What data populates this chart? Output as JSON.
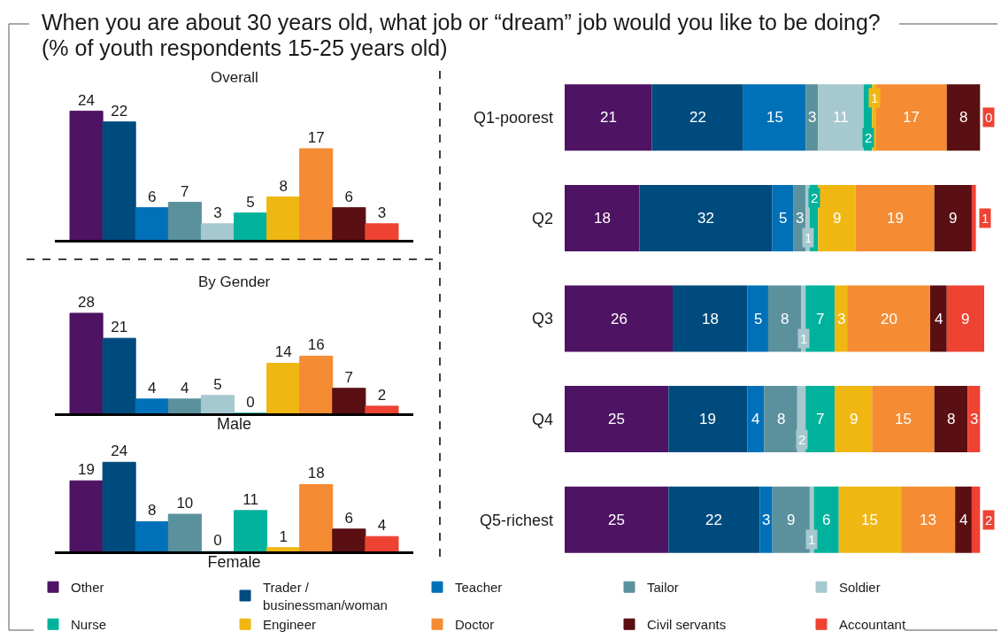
{
  "chart_data": [
    {
      "type": "other",
      "title": "When you are about 30 years old, what job or “dream” job would you like to be doing?",
      "subtitle": "(% of youth respondents 15-25 years old)"
    },
    {
      "type": "bar",
      "title": "Overall",
      "categories": [
        null
      ],
      "series": [
        {
          "name": "Other",
          "color": "#4e1363",
          "values": [
            24
          ]
        },
        {
          "name": "Trader / businessman/woman",
          "color": "#004b7e",
          "values": [
            22
          ]
        },
        {
          "name": "Teacher",
          "color": "#0070b8",
          "values": [
            6
          ]
        },
        {
          "name": "Tailor",
          "color": "#5b919d",
          "values": [
            7
          ]
        },
        {
          "name": "Soldier",
          "color": "#a6c8cf",
          "values": [
            3
          ]
        },
        {
          "name": "Nurse",
          "color": "#00b29c",
          "values": [
            5
          ]
        },
        {
          "name": "Engineer",
          "color": "#f0b713",
          "values": [
            8
          ]
        },
        {
          "name": "Doctor",
          "color": "#f58b33",
          "values": [
            17
          ]
        },
        {
          "name": "Civil servants",
          "color": "#5a0f12",
          "values": [
            6
          ]
        },
        {
          "name": "Accountant",
          "color": "#ee4232",
          "values": [
            3
          ]
        }
      ],
      "data_labels": true,
      "legend": "bottom",
      "tick_labels": false
    },
    {
      "type": "bar",
      "title": "By Gender",
      "xlabel": "Male",
      "categories": [
        null
      ],
      "series": [
        {
          "name": "Other",
          "color": "#4e1363",
          "values": [
            28
          ]
        },
        {
          "name": "Trader / businessman/woman",
          "color": "#004b7e",
          "values": [
            21
          ]
        },
        {
          "name": "Teacher",
          "color": "#0070b8",
          "values": [
            4
          ]
        },
        {
          "name": "Tailor",
          "color": "#5b919d",
          "values": [
            4
          ]
        },
        {
          "name": "Soldier",
          "color": "#a6c8cf",
          "values": [
            5
          ]
        },
        {
          "name": "Nurse",
          "color": "#00b29c",
          "values": [
            0
          ]
        },
        {
          "name": "Engineer",
          "color": "#f0b713",
          "values": [
            14
          ]
        },
        {
          "name": "Doctor",
          "color": "#f58b33",
          "values": [
            16
          ]
        },
        {
          "name": "Civil servants",
          "color": "#5a0f12",
          "values": [
            7
          ]
        },
        {
          "name": "Accountant",
          "color": "#ee4232",
          "values": [
            2
          ]
        }
      ],
      "data_labels": true,
      "legend": "bottom",
      "tick_labels": false
    },
    {
      "type": "bar",
      "xlabel": "Female",
      "categories": [
        null
      ],
      "series": [
        {
          "name": "Other",
          "color": "#4e1363",
          "values": [
            19
          ]
        },
        {
          "name": "Trader / businessman/woman",
          "color": "#004b7e",
          "values": [
            24
          ]
        },
        {
          "name": "Teacher",
          "color": "#0070b8",
          "values": [
            8
          ]
        },
        {
          "name": "Tailor",
          "color": "#5b919d",
          "values": [
            10
          ]
        },
        {
          "name": "Soldier",
          "color": "#a6c8cf",
          "values": [
            0
          ]
        },
        {
          "name": "Nurse",
          "color": "#00b29c",
          "values": [
            11
          ]
        },
        {
          "name": "Engineer",
          "color": "#f0b713",
          "values": [
            1
          ]
        },
        {
          "name": "Doctor",
          "color": "#f58b33",
          "values": [
            18
          ]
        },
        {
          "name": "Civil servants",
          "color": "#5a0f12",
          "values": [
            6
          ]
        },
        {
          "name": "Accountant",
          "color": "#ee4232",
          "values": [
            4
          ]
        }
      ],
      "data_labels": true,
      "legend": "bottom",
      "tick_labels": false
    },
    {
      "type": "bar",
      "orientation": "horizontal",
      "stacked": true,
      "categories": [
        "Q1-poorest",
        "Q2",
        "Q3",
        "Q4",
        "Q5-richest"
      ],
      "series": [
        {
          "name": "Other",
          "color": "#4e1363",
          "values": [
            21,
            18,
            26,
            25,
            25
          ]
        },
        {
          "name": "Trader / businessman/woman",
          "color": "#004b7e",
          "values": [
            22,
            32,
            18,
            19,
            22
          ]
        },
        {
          "name": "Teacher",
          "color": "#0070b8",
          "values": [
            15,
            5,
            5,
            4,
            3
          ]
        },
        {
          "name": "Tailor",
          "color": "#5b919d",
          "values": [
            3,
            3,
            8,
            8,
            9
          ]
        },
        {
          "name": "Soldier",
          "color": "#a6c8cf",
          "values": [
            11,
            1,
            1,
            2,
            1
          ]
        },
        {
          "name": "Nurse",
          "color": "#00b29c",
          "values": [
            2,
            2,
            7,
            7,
            6
          ]
        },
        {
          "name": "Engineer",
          "color": "#f0b713",
          "values": [
            1,
            9,
            3,
            9,
            15
          ]
        },
        {
          "name": "Doctor",
          "color": "#f58b33",
          "values": [
            17,
            19,
            20,
            15,
            13
          ]
        },
        {
          "name": "Civil servants",
          "color": "#5a0f12",
          "values": [
            8,
            9,
            4,
            8,
            4
          ]
        },
        {
          "name": "Accountant",
          "color": "#ee4232",
          "values": [
            0,
            1,
            9,
            3,
            2
          ]
        }
      ],
      "xlim": [
        0,
        101
      ],
      "data_labels": true,
      "legend": "bottom",
      "tick_labels": "y"
    }
  ]
}
